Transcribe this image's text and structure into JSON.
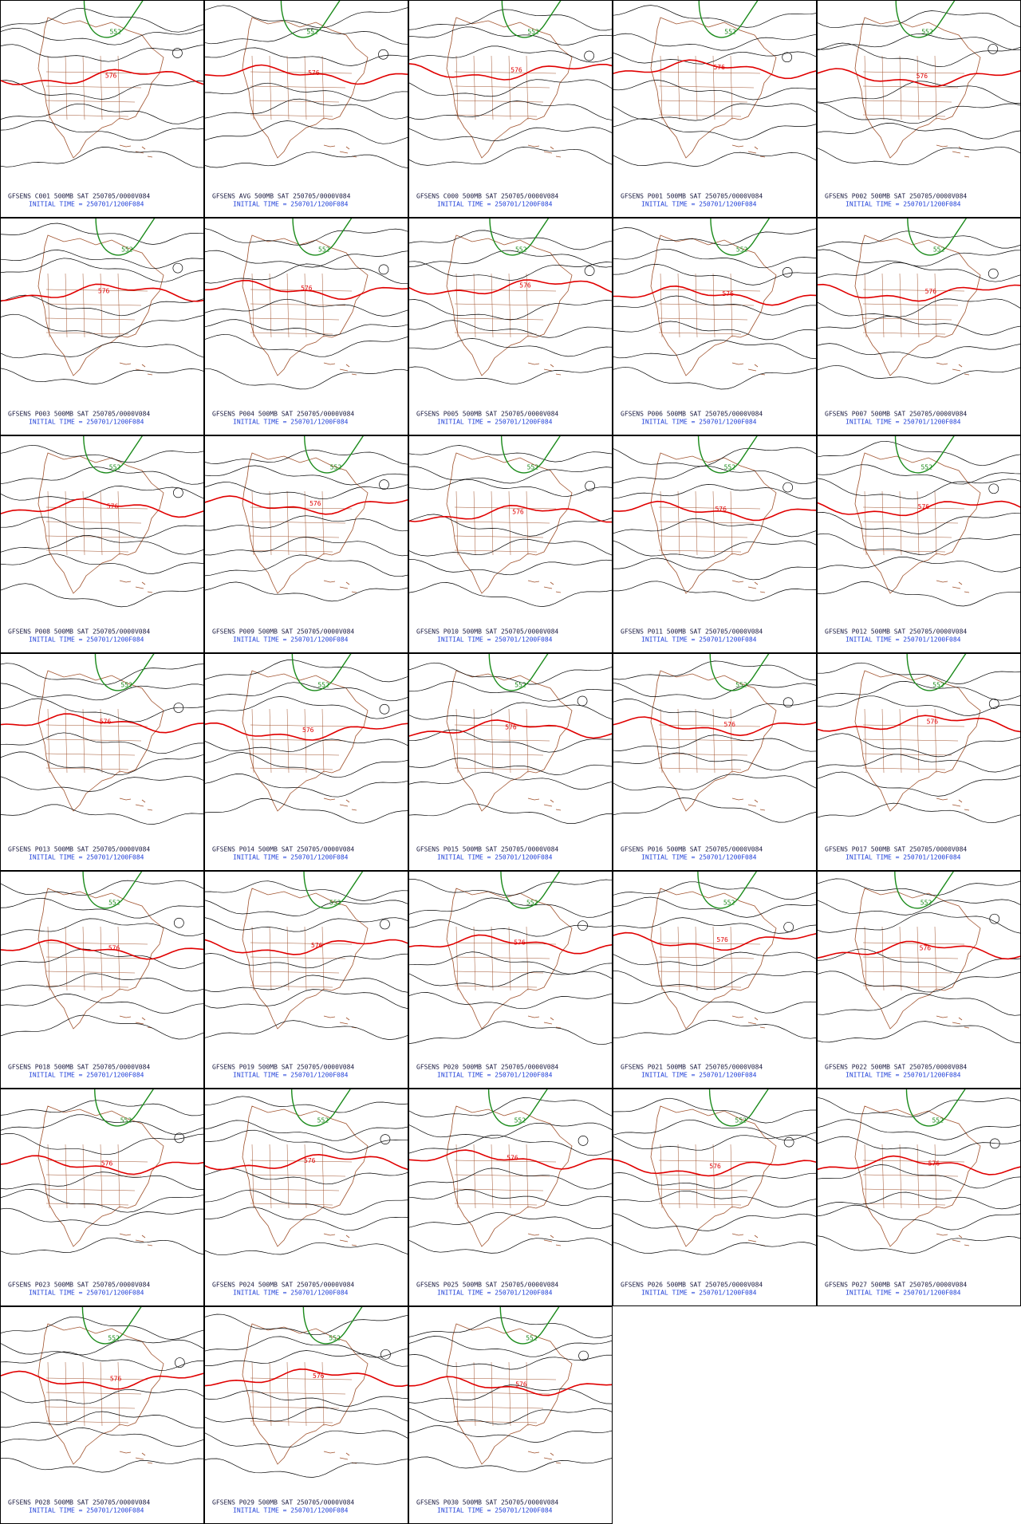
{
  "panels": [
    {
      "title": "GFSENS C001 500MB SAT 250705/0000V084",
      "time": "INITIAL TIME = 250701/1200F084",
      "contours": [
        "576",
        "552"
      ]
    },
    {
      "title": "GFSENS AVG 500MB SAT 250705/0000V084",
      "time": "INITIAL TIME = 250701/1200F084",
      "contours": [
        "576",
        "552"
      ]
    },
    {
      "title": "GFSENS C000 500MB SAT 250705/0000V084",
      "time": "INITIAL TIME = 250701/1200F084",
      "contours": [
        "576",
        "552"
      ]
    },
    {
      "title": "GFSENS P001 500MB SAT 250705/0000V084",
      "time": "INITIAL TIME = 250701/1200F084",
      "contours": [
        "576",
        "552"
      ]
    },
    {
      "title": "GFSENS P002 500MB SAT 250705/0000V084",
      "time": "INITIAL TIME = 250701/1200F084",
      "contours": [
        "576",
        "552"
      ]
    },
    {
      "title": "GFSENS P003 500MB SAT 250705/0000V084",
      "time": "INITIAL TIME = 250701/1200F084",
      "contours": [
        "576",
        "552"
      ]
    },
    {
      "title": "GFSENS P004 500MB SAT 250705/0000V084",
      "time": "INITIAL TIME = 250701/1200F084",
      "contours": [
        "576",
        "552"
      ]
    },
    {
      "title": "GFSENS P005 500MB SAT 250705/0000V084",
      "time": "INITIAL TIME = 250701/1200F084",
      "contours": [
        "576",
        "552"
      ]
    },
    {
      "title": "GFSENS P006 500MB SAT 250705/0000V084",
      "time": "INITIAL TIME = 250701/1200F084",
      "contours": [
        "576",
        "552"
      ]
    },
    {
      "title": "GFSENS P007 500MB SAT 250705/0000V084",
      "time": "INITIAL TIME = 250701/1200F084",
      "contours": [
        "576",
        "552"
      ]
    },
    {
      "title": "GFSENS P008 500MB SAT 250705/0000V084",
      "time": "INITIAL TIME = 250701/1200F084",
      "contours": [
        "576",
        "552"
      ]
    },
    {
      "title": "GFSENS P009 500MB SAT 250705/0000V084",
      "time": "INITIAL TIME = 250701/1200F084",
      "contours": [
        "576",
        "552"
      ]
    },
    {
      "title": "GFSENS P010 500MB SAT 250705/0000V084",
      "time": "INITIAL TIME = 250701/1200F084",
      "contours": [
        "576",
        "552"
      ]
    },
    {
      "title": "GFSENS P011 500MB SAT 250705/0000V084",
      "time": "INITIAL TIME = 250701/1200F084",
      "contours": [
        "576",
        "552"
      ]
    },
    {
      "title": "GFSENS P012 500MB SAT 250705/0000V084",
      "time": "INITIAL TIME = 250701/1200F084",
      "contours": [
        "576",
        "552"
      ]
    },
    {
      "title": "GFSENS P013 500MB SAT 250705/0000V084",
      "time": "INITIAL TIME = 250701/1200F084",
      "contours": [
        "576",
        "552"
      ]
    },
    {
      "title": "GFSENS P014 500MB SAT 250705/0000V084",
      "time": "INITIAL TIME = 250701/1200F084",
      "contours": [
        "576",
        "552"
      ]
    },
    {
      "title": "GFSENS P015 500MB SAT 250705/0000V084",
      "time": "INITIAL TIME = 250701/1200F084",
      "contours": [
        "576",
        "552"
      ]
    },
    {
      "title": "GFSENS P016 500MB SAT 250705/0000V084",
      "time": "INITIAL TIME = 250701/1200F084",
      "contours": [
        "576",
        "552"
      ]
    },
    {
      "title": "GFSENS P017 500MB SAT 250705/0000V084",
      "time": "INITIAL TIME = 250701/1200F084",
      "contours": [
        "576",
        "552"
      ]
    },
    {
      "title": "GFSENS P018 500MB SAT 250705/0000V084",
      "time": "INITIAL TIME = 250701/1200F084",
      "contours": [
        "576",
        "552"
      ]
    },
    {
      "title": "GFSENS P019 500MB SAT 250705/0000V084",
      "time": "INITIAL TIME = 250701/1200F084",
      "contours": [
        "576",
        "552"
      ]
    },
    {
      "title": "GFSENS P020 500MB SAT 250705/0000V084",
      "time": "INITIAL TIME = 250701/1200F084",
      "contours": [
        "576",
        "552"
      ]
    },
    {
      "title": "GFSENS P021 500MB SAT 250705/0000V084",
      "time": "INITIAL TIME = 250701/1200F084",
      "contours": [
        "576",
        "552"
      ]
    },
    {
      "title": "GFSENS P022 500MB SAT 250705/0000V084",
      "time": "INITIAL TIME = 250701/1200F084",
      "contours": [
        "576",
        "552"
      ]
    },
    {
      "title": "GFSENS P023 500MB SAT 250705/0000V084",
      "time": "INITIAL TIME = 250701/1200F084",
      "contours": [
        "576",
        "552"
      ]
    },
    {
      "title": "GFSENS P024 500MB SAT 250705/0000V084",
      "time": "INITIAL TIME = 250701/1200F084",
      "contours": [
        "576",
        "552"
      ]
    },
    {
      "title": "GFSENS P025 500MB SAT 250705/0000V084",
      "time": "INITIAL TIME = 250701/1200F084",
      "contours": [
        "576",
        "552"
      ]
    },
    {
      "title": "GFSENS P026 500MB SAT 250705/0000V084",
      "time": "INITIAL TIME = 250701/1200F084",
      "contours": [
        "576",
        "552"
      ]
    },
    {
      "title": "GFSENS P027 500MB SAT 250705/0000V084",
      "time": "INITIAL TIME = 250701/1200F084",
      "contours": [
        "576",
        "552"
      ]
    },
    {
      "title": "GFSENS P028 500MB SAT 250705/0000V084",
      "time": "INITIAL TIME = 250701/1200F084",
      "contours": [
        "576",
        "552"
      ]
    },
    {
      "title": "GFSENS P029 500MB SAT 250705/0000V084",
      "time": "INITIAL TIME = 250701/1200F084",
      "contours": [
        "576",
        "552"
      ]
    },
    {
      "title": "GFSENS P030 500MB SAT 250705/0000V084",
      "time": "INITIAL TIME = 250701/1200F084",
      "contours": [
        "576",
        "552"
      ]
    }
  ]
}
